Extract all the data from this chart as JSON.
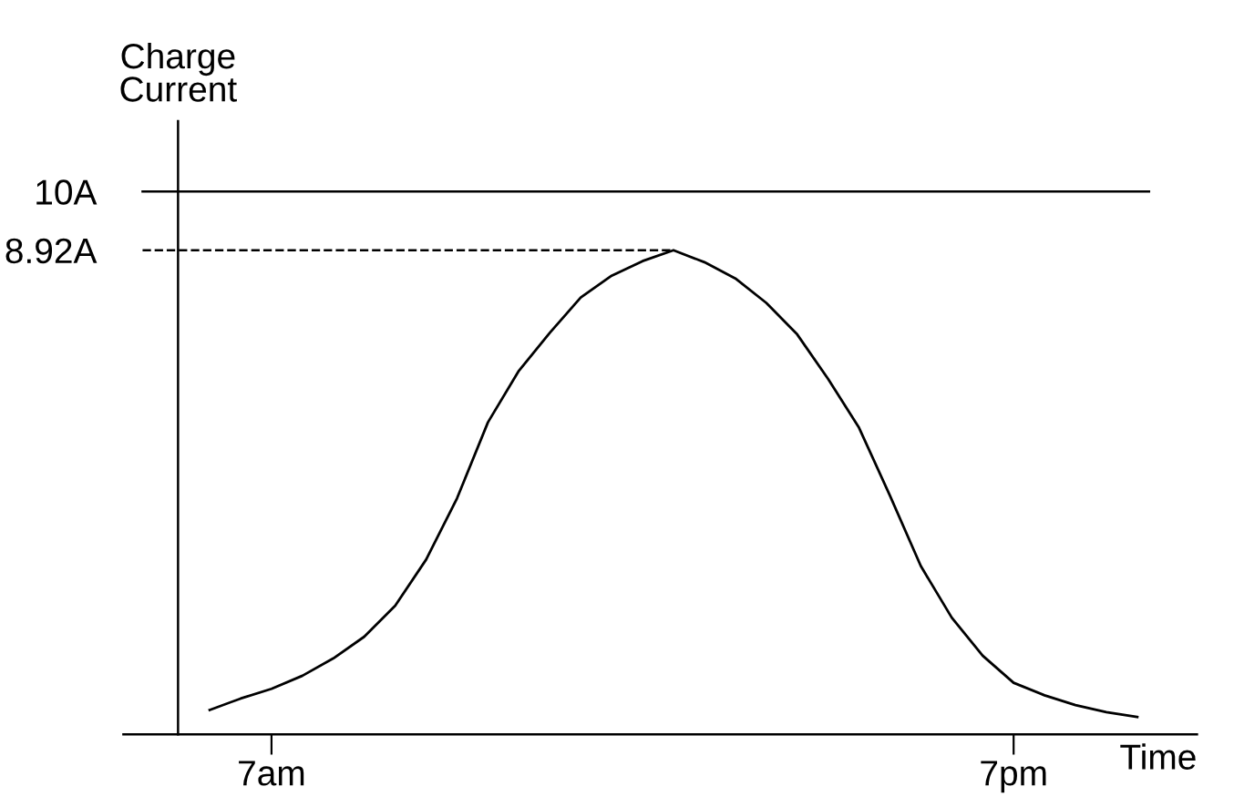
{
  "chart_data": {
    "type": "line",
    "xlabel": "Time",
    "ylabel": "Charge\nCurrent",
    "categories": [
      null,
      null,
      "7am",
      null,
      null,
      null,
      null,
      null,
      null,
      null,
      null,
      null,
      null,
      null,
      null,
      null,
      null,
      null,
      null,
      null,
      null,
      null,
      null,
      null,
      null,
      null,
      "7pm",
      null,
      null,
      null,
      null
    ],
    "series": [
      {
        "color": "#000000",
        "values": [
          0.45,
          0.66,
          0.84,
          1.08,
          1.4,
          1.8,
          2.37,
          3.22,
          4.35,
          5.75,
          6.7,
          7.4,
          8.05,
          8.45,
          8.72,
          8.92,
          8.7,
          8.4,
          7.95,
          7.37,
          6.55,
          5.65,
          4.4,
          3.1,
          2.15,
          1.45,
          0.95,
          0.72,
          0.54,
          0.41,
          0.32
        ]
      }
    ],
    "ylim": [
      0,
      11.3
    ],
    "yticks": [
      {
        "value": 8.92,
        "label": "8.92A"
      },
      {
        "value": 10,
        "label": "10A"
      }
    ],
    "ref_lines": [
      {
        "axis": "y",
        "value": 10,
        "color": "#000000",
        "line_style": "solid"
      },
      {
        "axis": "y",
        "value": 8.92,
        "color": "#000000",
        "line_style": "dashed"
      }
    ],
    "grid": false,
    "legend": false,
    "marker": "none",
    "line_style": "solid"
  }
}
